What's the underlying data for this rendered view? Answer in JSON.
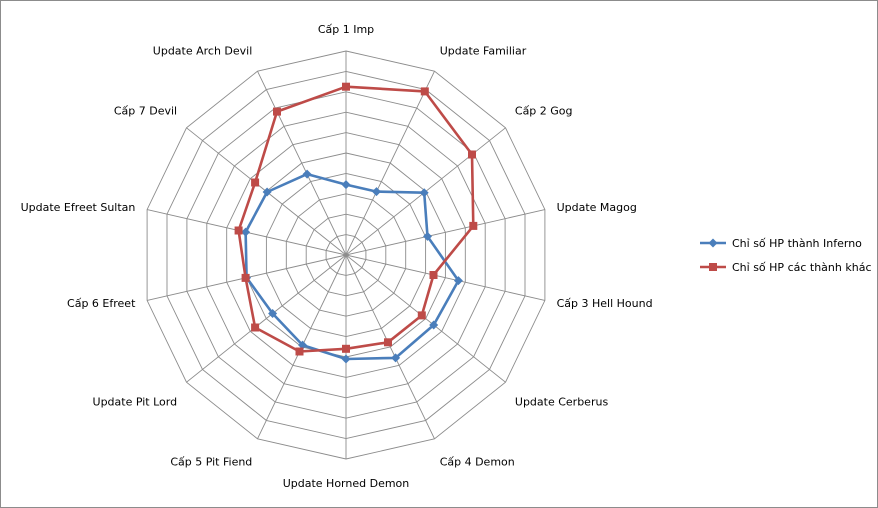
{
  "chart_data": {
    "type": "radar",
    "categories": [
      "Cấp 1 Imp",
      "Update Familiar",
      "Cấp 2 Gog",
      "Update Magog",
      "Cấp 3 Hell Hound",
      "Update Cerberus",
      "Cấp 4 Demon",
      "Update Horned Demon",
      "Cấp 5 Pit Fiend",
      "Update Pit Lord",
      "Cấp 6 Efreet",
      "Update Efreet Sultan",
      "Cấp 7 Devil",
      "Update Arch Devil"
    ],
    "series": [
      {
        "name": "Chỉ số HP thành Inferno",
        "color": "#4a7ebb",
        "marker": "diamond",
        "values": [
          3.45,
          3.45,
          4.9,
          4.1,
          5.65,
          5.5,
          5.6,
          5.1,
          4.9,
          4.6,
          5.0,
          5.05,
          4.95,
          4.4
        ]
      },
      {
        "name": "Chỉ số HP các thành khác",
        "color": "#be4b48",
        "marker": "square",
        "values": [
          8.25,
          8.9,
          7.9,
          6.4,
          4.4,
          4.75,
          4.75,
          4.6,
          5.25,
          5.7,
          5.05,
          5.4,
          5.7,
          7.8
        ]
      }
    ],
    "rlim": [
      0,
      10
    ],
    "ring_count": 10,
    "grid": true,
    "legend": "right"
  }
}
